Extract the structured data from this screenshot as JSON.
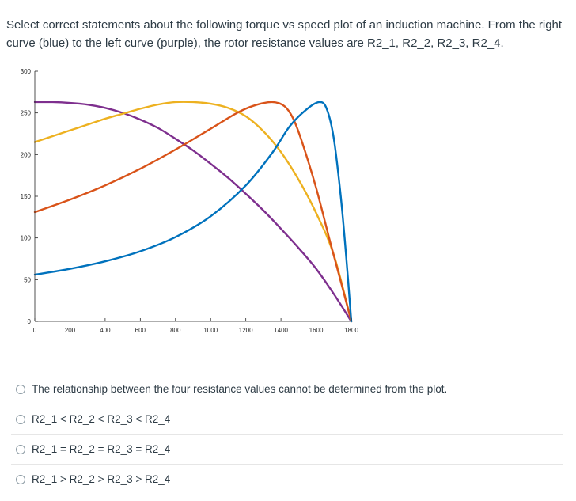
{
  "question": {
    "text": "Select correct statements about the following torque vs speed plot of an induction machine. From the right curve (blue) to the left curve (purple), the rotor resistance values are R2_1, R2_2, R2_3, R2_4."
  },
  "chart_data": {
    "type": "line",
    "title": "",
    "xlabel": "",
    "ylabel": "",
    "xlim": [
      0,
      1800
    ],
    "ylim": [
      0,
      300
    ],
    "xticks": [
      "0",
      "200",
      "400",
      "600",
      "800",
      "1000",
      "1200",
      "1400",
      "1600",
      "1800"
    ],
    "yticks": [
      "0",
      "50",
      "100",
      "150",
      "200",
      "250",
      "300"
    ],
    "grid": false,
    "legend": "none",
    "series": [
      {
        "color": "#0072BD",
        "x": [
          0,
          200,
          400,
          600,
          800,
          1000,
          1200,
          1350,
          1450,
          1550,
          1620,
          1660,
          1700,
          1740,
          1770,
          1800
        ],
        "y": [
          56,
          63,
          72,
          84,
          101,
          126,
          163,
          202,
          234,
          255,
          263,
          255,
          220,
          150,
          80,
          0
        ]
      },
      {
        "color": "#D95319",
        "x": [
          0,
          200,
          400,
          600,
          800,
          1000,
          1150,
          1250,
          1350,
          1420,
          1470,
          1520,
          1600,
          1680,
          1750,
          1800
        ],
        "y": [
          131,
          146,
          163,
          183,
          206,
          231,
          250,
          259,
          263,
          258,
          243,
          215,
          160,
          95,
          40,
          0
        ]
      },
      {
        "color": "#EDB120",
        "x": [
          0,
          100,
          200,
          300,
          400,
          500,
          600,
          700,
          800,
          900,
          1000,
          1100,
          1200,
          1300,
          1400,
          1500,
          1600,
          1700,
          1800
        ],
        "y": [
          215,
          222,
          229,
          236,
          243,
          249,
          255,
          260,
          263,
          263,
          261,
          256,
          246,
          228,
          203,
          170,
          130,
          80,
          0
        ]
      },
      {
        "color": "#7E2F8E",
        "x": [
          0,
          100,
          200,
          300,
          400,
          500,
          600,
          700,
          800,
          900,
          1000,
          1100,
          1200,
          1300,
          1400,
          1500,
          1600,
          1700,
          1800
        ],
        "y": [
          263,
          263,
          262,
          260,
          256,
          250,
          242,
          232,
          219,
          205,
          189,
          172,
          153,
          133,
          111,
          88,
          63,
          33,
          0
        ]
      }
    ]
  },
  "options": [
    {
      "label": "The relationship between the four resistance values cannot be determined from the plot."
    },
    {
      "label": "R2_1 < R2_2 < R2_3 < R2_4"
    },
    {
      "label": "R2_1 = R2_2 = R2_3 = R2_4"
    },
    {
      "label": "R2_1 > R2_2 > R2_3 > R2_4"
    }
  ]
}
